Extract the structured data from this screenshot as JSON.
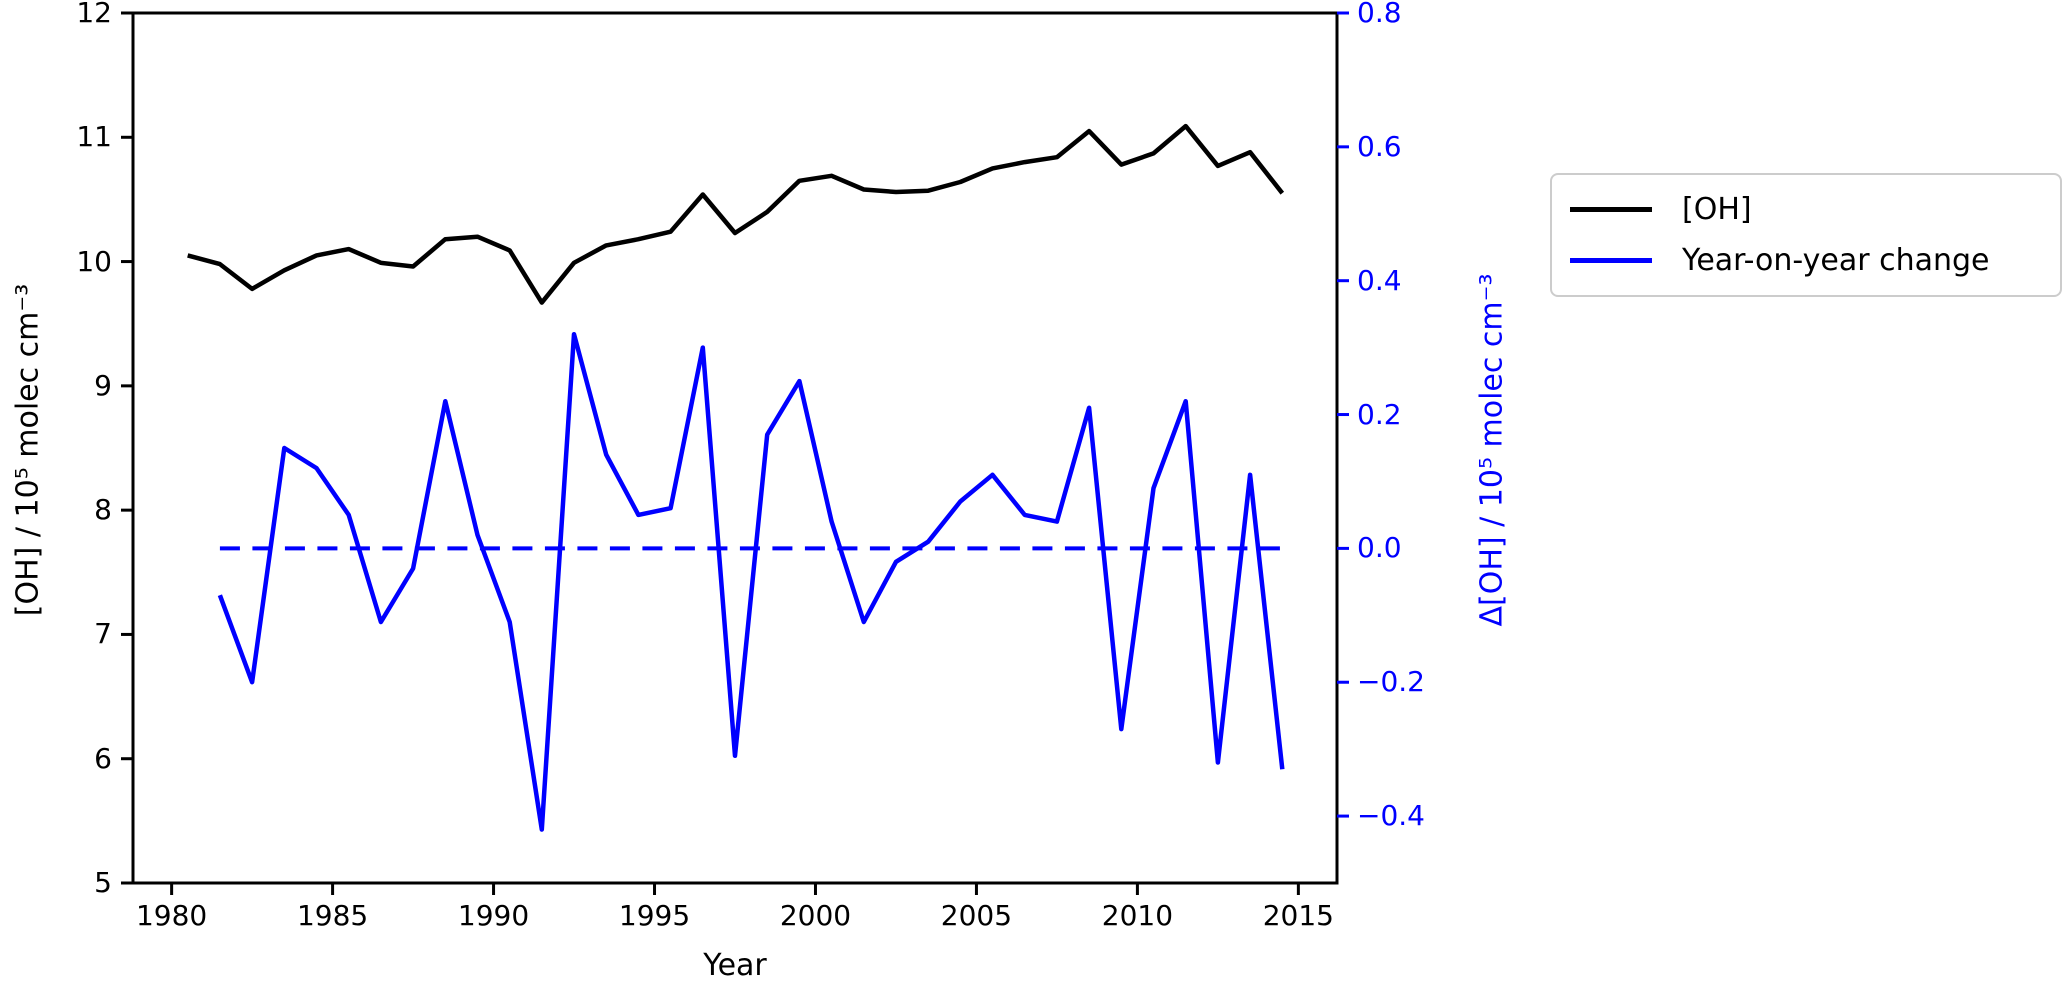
{
  "figure": {
    "background": "#ffffff"
  },
  "axes": {
    "xlabel": "Year",
    "ylabel_left": "[OH] / 10⁵ molec cm⁻³",
    "ylabel_right": "Δ[OH] / 10⁵ molec cm⁻³",
    "x_tick_values": [
      1980,
      1985,
      1990,
      1995,
      2000,
      2005,
      2010,
      2015
    ],
    "x_tick_labels": [
      "1980",
      "1985",
      "1990",
      "1995",
      "2000",
      "2005",
      "2010",
      "2015"
    ],
    "y_left_tick_values": [
      5,
      6,
      7,
      8,
      9,
      10,
      11,
      12
    ],
    "y_left_tick_labels": [
      "5",
      "6",
      "7",
      "8",
      "9",
      "10",
      "11",
      "12"
    ],
    "y_right_tick_values": [
      -0.4,
      -0.2,
      0.0,
      0.2,
      0.4,
      0.6,
      0.8
    ],
    "y_right_tick_labels": [
      "−0.4",
      "−0.2",
      "0.0",
      "0.2",
      "0.4",
      "0.6",
      "0.8"
    ],
    "left_axis_color": "#000000",
    "right_axis_color": "#0000ff"
  },
  "legend": {
    "position": "outside-right",
    "entries": [
      {
        "label": "[OH]",
        "color": "#000000"
      },
      {
        "label": "Year-on-year change",
        "color": "#0000ff"
      }
    ]
  },
  "chart_data": {
    "type": "line",
    "title": "",
    "xlabel": "Year",
    "ylabel_left": "[OH] / 10⁵ molec cm⁻³",
    "ylabel_right": "Δ[OH] / 10⁵ molec cm⁻³",
    "xlim": [
      1978.8,
      2016.2
    ],
    "ylim_left": [
      5,
      12
    ],
    "ylim_right": [
      -0.5,
      0.8
    ],
    "grid": false,
    "legend_position": "outside-right",
    "series": [
      {
        "name": "[OH]",
        "axis": "left",
        "color": "#000000",
        "style": "solid",
        "x": [
          1980.5,
          1981.5,
          1982.5,
          1983.5,
          1984.5,
          1985.5,
          1986.5,
          1987.5,
          1988.5,
          1989.5,
          1990.5,
          1991.5,
          1992.5,
          1993.5,
          1994.5,
          1995.5,
          1996.5,
          1997.5,
          1998.5,
          1999.5,
          2000.5,
          2001.5,
          2002.5,
          2003.5,
          2004.5,
          2005.5,
          2006.5,
          2007.5,
          2008.5,
          2009.5,
          2010.5,
          2011.5,
          2012.5,
          2013.5,
          2014.5
        ],
        "values": [
          10.05,
          9.98,
          9.78,
          9.93,
          10.05,
          10.1,
          9.99,
          9.96,
          10.18,
          10.2,
          10.09,
          9.67,
          9.99,
          10.13,
          10.18,
          10.24,
          10.54,
          10.23,
          10.4,
          10.65,
          10.69,
          10.58,
          10.56,
          10.57,
          10.64,
          10.75,
          10.8,
          10.84,
          11.05,
          10.78,
          10.87,
          11.09,
          10.77,
          10.88,
          10.55
        ]
      },
      {
        "name": "Year-on-year change",
        "axis": "right",
        "color": "#0000ff",
        "style": "solid",
        "x": [
          1981.5,
          1982.5,
          1983.5,
          1984.5,
          1985.5,
          1986.5,
          1987.5,
          1988.5,
          1989.5,
          1990.5,
          1991.5,
          1992.5,
          1993.5,
          1994.5,
          1995.5,
          1996.5,
          1997.5,
          1998.5,
          1999.5,
          2000.5,
          2001.5,
          2002.5,
          2003.5,
          2004.5,
          2005.5,
          2006.5,
          2007.5,
          2008.5,
          2009.5,
          2010.5,
          2011.5,
          2012.5,
          2013.5,
          2014.5
        ],
        "values": [
          -0.07,
          -0.2,
          0.15,
          0.12,
          0.05,
          -0.11,
          -0.03,
          0.22,
          0.02,
          -0.11,
          -0.42,
          0.32,
          0.14,
          0.05,
          0.06,
          0.3,
          -0.31,
          0.17,
          0.25,
          0.04,
          -0.11,
          -0.02,
          0.01,
          0.07,
          0.11,
          0.05,
          0.04,
          0.21,
          -0.27,
          0.09,
          0.22,
          -0.32,
          0.11,
          -0.33
        ]
      }
    ],
    "zero_line": {
      "axis": "right",
      "value": 0.0,
      "style": "dashed",
      "color": "#0000ff",
      "x_start": 1981.5,
      "x_end": 2014.5
    }
  }
}
